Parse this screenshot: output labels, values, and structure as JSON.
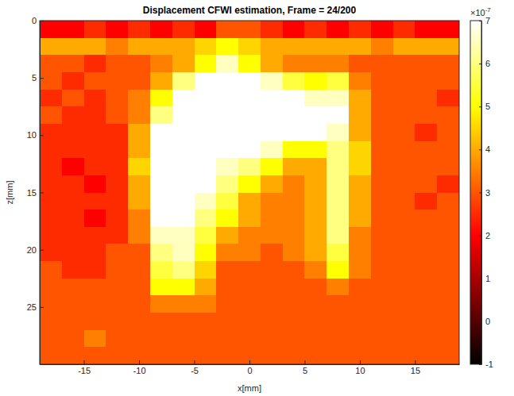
{
  "chart_data": {
    "type": "heatmap",
    "title": "Displacement CFWI estimation, Frame = 24/200",
    "x_label": "x[mm]",
    "y_label": "z[mm]",
    "xlim": [
      -19,
      19
    ],
    "ylim": [
      0,
      30
    ],
    "xticks": [
      -15,
      -10,
      -5,
      0,
      5,
      10,
      15
    ],
    "yticks": [
      0,
      5,
      10,
      15,
      20,
      25
    ],
    "cells": {
      "x": [
        -18,
        -16,
        -14,
        -12,
        -10,
        -8,
        -6,
        -4,
        -2,
        0,
        2,
        4,
        6,
        8,
        10,
        12,
        14,
        16,
        18
      ],
      "z": [
        0.75,
        2.25,
        3.75,
        5.25,
        6.75,
        8.25,
        9.75,
        11.25,
        12.75,
        14.25,
        15.75,
        17.25,
        18.75,
        20.25,
        21.75,
        23.25,
        24.75,
        26.25,
        27.75,
        29.25
      ],
      "values": [
        [
          2,
          2,
          2.5,
          2,
          2.5,
          2,
          2.5,
          2,
          3,
          3,
          2.5,
          2,
          2.5,
          2,
          2.5,
          2,
          2.5,
          2,
          2
        ],
        [
          4,
          4,
          4,
          3.5,
          4,
          4,
          4,
          4.5,
          5,
          4.5,
          4,
          4,
          4,
          4,
          4,
          3.5,
          4,
          4,
          4
        ],
        [
          3,
          3,
          2.5,
          3,
          3,
          3.5,
          4,
          5,
          6.5,
          5,
          4,
          3.5,
          3.5,
          3.5,
          3,
          3,
          3,
          3,
          3
        ],
        [
          3,
          2.5,
          3,
          3,
          3,
          4,
          6,
          7,
          7,
          7,
          6.5,
          5.5,
          5,
          5.5,
          3.5,
          3,
          3,
          3,
          3
        ],
        [
          2.5,
          3,
          2.5,
          3,
          3.5,
          5,
          7,
          7,
          7,
          7,
          7,
          7,
          6.5,
          6.5,
          4,
          3,
          3,
          3,
          2.5
        ],
        [
          3,
          2.5,
          2.5,
          3,
          3.5,
          6,
          7,
          7,
          7,
          7,
          7,
          7,
          7,
          7,
          4,
          3,
          3,
          3,
          3
        ],
        [
          2.5,
          2.5,
          2.5,
          2.5,
          4,
          7,
          7,
          7,
          7,
          7,
          7,
          7,
          7,
          6.5,
          4,
          3,
          3,
          2.5,
          3
        ],
        [
          2.5,
          2.5,
          2.5,
          2.5,
          4,
          7,
          7,
          7,
          7,
          7,
          6.5,
          5,
          5,
          6,
          4.5,
          3,
          3,
          3,
          3
        ],
        [
          2.5,
          2,
          2.5,
          2.5,
          4.5,
          7,
          7,
          7,
          6.5,
          6,
          5,
          4,
          4,
          6,
          4.5,
          3,
          3,
          3,
          3
        ],
        [
          2.5,
          2.5,
          2,
          2.5,
          4,
          7,
          7,
          7,
          6,
          5,
          4,
          3.5,
          4,
          6,
          4,
          3,
          3,
          3,
          2.5
        ],
        [
          2.5,
          2.5,
          2.5,
          2.5,
          4,
          7,
          7,
          6.5,
          5.5,
          4,
          3.5,
          3.5,
          4,
          6,
          4,
          3,
          3,
          2.5,
          3
        ],
        [
          2.5,
          2.5,
          2,
          2.5,
          3.5,
          7,
          7,
          6,
          5,
          4,
          3.5,
          3.5,
          4,
          6,
          4,
          3,
          3,
          3,
          3
        ],
        [
          2.5,
          2.5,
          2.5,
          2.5,
          3.5,
          6.5,
          6.5,
          5.5,
          4,
          3.5,
          3.5,
          3.5,
          4,
          6,
          3.5,
          3,
          3,
          3,
          3
        ],
        [
          2.5,
          2.5,
          2.5,
          3,
          3,
          6,
          6.5,
          5,
          3.5,
          3.5,
          3,
          3.5,
          4,
          5.5,
          3.5,
          3,
          3,
          3,
          3
        ],
        [
          3,
          2.5,
          2.5,
          3,
          3,
          5.5,
          6,
          4.5,
          3,
          3,
          3,
          3,
          3.5,
          5,
          3.5,
          3,
          3,
          3,
          3
        ],
        [
          3,
          3,
          3,
          3,
          3,
          5,
          5,
          4,
          3,
          3,
          3,
          3,
          3,
          3.5,
          3,
          3,
          3,
          3,
          3
        ],
        [
          3,
          3,
          3,
          3,
          3,
          3.5,
          3.5,
          3.5,
          3,
          3,
          3,
          3,
          3,
          3,
          3,
          3,
          3,
          3,
          3
        ],
        [
          3,
          3,
          3,
          3,
          3,
          3,
          3,
          3,
          3,
          3,
          3,
          3,
          3,
          3,
          3,
          3,
          3,
          3,
          3
        ],
        [
          3,
          3,
          3.5,
          3,
          3,
          3,
          3,
          3,
          3,
          3,
          3,
          3,
          3,
          3,
          3,
          3,
          3,
          3,
          3
        ],
        [
          3,
          3,
          3,
          3,
          3,
          3,
          3,
          3,
          3,
          3,
          3,
          3,
          3,
          3,
          3,
          3,
          3,
          3,
          3
        ]
      ]
    },
    "colorbar": {
      "range": [
        -1,
        7
      ],
      "ticks": [
        -1,
        0,
        1,
        2,
        3,
        4,
        5,
        6,
        7
      ],
      "multiplier": {
        "base": "×10",
        "exponent": "-7"
      }
    }
  }
}
